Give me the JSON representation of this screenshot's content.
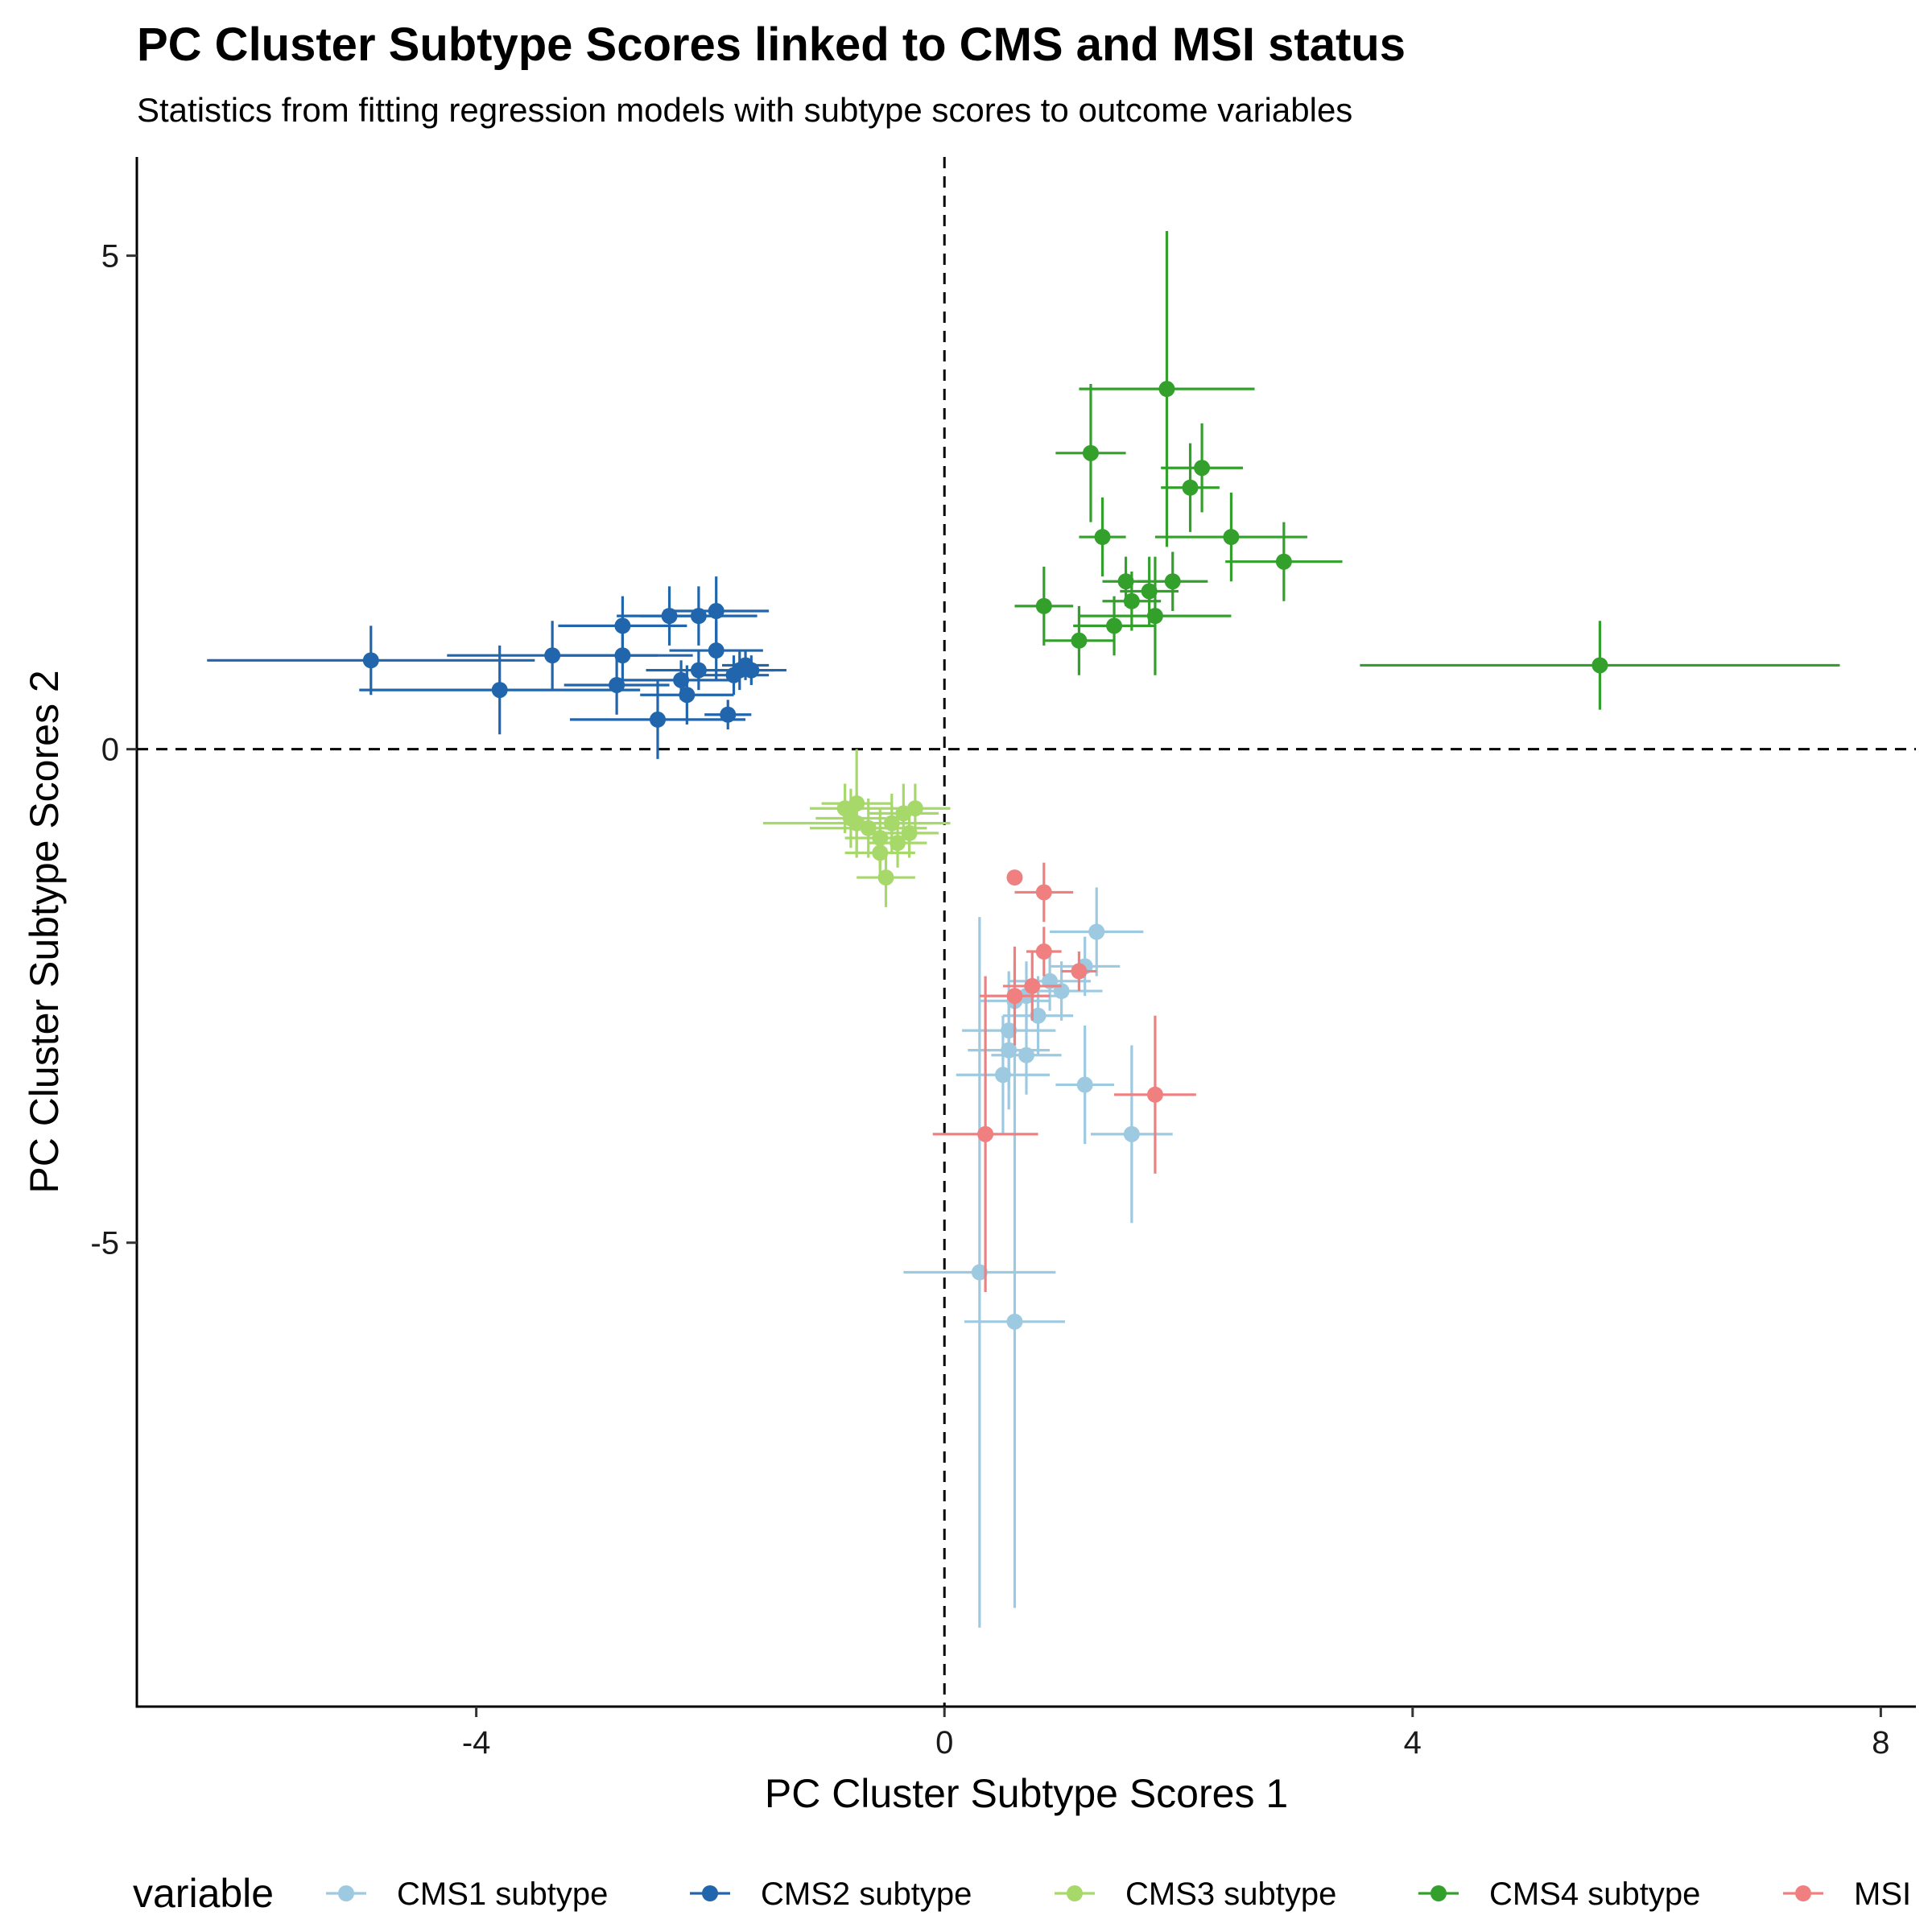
{
  "chart_data": {
    "type": "scatter",
    "title": "PC Cluster Subtype Scores linked to CMS and MSI status",
    "subtitle": "Statistics from fitting regression models with subtype scores to outcome variables",
    "xlabel": "PC Cluster Subtype Scores 1",
    "ylabel": "PC Cluster Subtype Scores 2",
    "xlim": [
      -6.9,
      8.3
    ],
    "ylim": [
      -9.7,
      6.0
    ],
    "xticks": [
      -4,
      0,
      4,
      8
    ],
    "yticks": [
      -5,
      0,
      5
    ],
    "xtick_labels": [
      "-4",
      "0",
      "4",
      "8"
    ],
    "ytick_labels": [
      "-5",
      "0",
      "5"
    ],
    "reference_lines": {
      "x": 0,
      "y": 0,
      "style": "dashed"
    },
    "grid": false,
    "legend": {
      "title": "variable",
      "position": "bottom"
    },
    "series": [
      {
        "name": "CMS1 subtype",
        "color": "#9ecae1",
        "points": [
          {
            "x": 1.3,
            "y": -1.85,
            "xerr": 0.4,
            "yerr": 0.45
          },
          {
            "x": 1.2,
            "y": -2.2,
            "xerr": 0.3,
            "yerr": 0.3
          },
          {
            "x": 0.9,
            "y": -2.35,
            "xerr": 0.35,
            "yerr": 0.3
          },
          {
            "x": 1.0,
            "y": -2.45,
            "xerr": 0.35,
            "yerr": 0.3
          },
          {
            "x": 0.7,
            "y": -2.5,
            "xerr": 0.35,
            "yerr": 0.35
          },
          {
            "x": 0.6,
            "y": -2.55,
            "xerr": 0.3,
            "yerr": 0.4
          },
          {
            "x": 0.8,
            "y": -2.7,
            "xerr": 0.3,
            "yerr": 0.4
          },
          {
            "x": 0.55,
            "y": -2.85,
            "xerr": 0.4,
            "yerr": 0.6
          },
          {
            "x": 0.55,
            "y": -3.05,
            "xerr": 0.35,
            "yerr": 0.6
          },
          {
            "x": 0.7,
            "y": -3.1,
            "xerr": 0.3,
            "yerr": 0.4
          },
          {
            "x": 0.5,
            "y": -3.3,
            "xerr": 0.4,
            "yerr": 0.6
          },
          {
            "x": 1.2,
            "y": -3.4,
            "xerr": 0.25,
            "yerr": 0.6
          },
          {
            "x": 1.6,
            "y": -3.9,
            "xerr": 0.35,
            "yerr": 0.9
          },
          {
            "x": 0.3,
            "y": -5.3,
            "xerr": 0.65,
            "yerr": 3.6
          },
          {
            "x": 0.6,
            "y": -5.8,
            "xerr": 0.43,
            "yerr": 2.9
          }
        ]
      },
      {
        "name": "CMS2 subtype",
        "color": "#2166ac",
        "points": [
          {
            "x": -4.9,
            "y": 0.9,
            "xerr": 1.4,
            "yerr": 0.35
          },
          {
            "x": -3.8,
            "y": 0.6,
            "xerr": 1.2,
            "yerr": 0.45
          },
          {
            "x": -3.35,
            "y": 0.95,
            "xerr": 0.9,
            "yerr": 0.35
          },
          {
            "x": -2.8,
            "y": 0.65,
            "xerr": 0.45,
            "yerr": 0.3
          },
          {
            "x": -2.75,
            "y": 1.25,
            "xerr": 0.55,
            "yerr": 0.3
          },
          {
            "x": -2.75,
            "y": 0.95,
            "xerr": 0.6,
            "yerr": 0.3
          },
          {
            "x": -2.45,
            "y": 0.3,
            "xerr": 0.75,
            "yerr": 0.4
          },
          {
            "x": -2.35,
            "y": 1.35,
            "xerr": 0.45,
            "yerr": 0.3
          },
          {
            "x": -2.25,
            "y": 0.7,
            "xerr": 0.5,
            "yerr": 0.2
          },
          {
            "x": -2.2,
            "y": 0.55,
            "xerr": 0.4,
            "yerr": 0.3
          },
          {
            "x": -2.1,
            "y": 1.35,
            "xerr": 0.5,
            "yerr": 0.3
          },
          {
            "x": -2.1,
            "y": 0.8,
            "xerr": 0.45,
            "yerr": 0.2
          },
          {
            "x": -1.95,
            "y": 1.0,
            "xerr": 0.4,
            "yerr": 0.3
          },
          {
            "x": -1.95,
            "y": 1.4,
            "xerr": 0.45,
            "yerr": 0.35
          },
          {
            "x": -1.85,
            "y": 0.35,
            "xerr": 0.2,
            "yerr": 0.15
          },
          {
            "x": -1.8,
            "y": 0.75,
            "xerr": 0.3,
            "yerr": 0.2
          },
          {
            "x": -1.75,
            "y": 0.8,
            "xerr": 0.3,
            "yerr": 0.2
          },
          {
            "x": -1.7,
            "y": 0.85,
            "xerr": 0.2,
            "yerr": 0.15
          },
          {
            "x": -1.65,
            "y": 0.8,
            "xerr": 0.3,
            "yerr": 0.15
          }
        ]
      },
      {
        "name": "CMS3 subtype",
        "color": "#a6d96a",
        "points": [
          {
            "x": -0.75,
            "y": -0.55,
            "xerr": 0.3,
            "yerr": 0.55
          },
          {
            "x": -0.8,
            "y": -0.7,
            "xerr": 0.3,
            "yerr": 0.3
          },
          {
            "x": -0.65,
            "y": -0.8,
            "xerr": 0.5,
            "yerr": 0.3
          },
          {
            "x": -0.55,
            "y": -0.9,
            "xerr": 0.3,
            "yerr": 0.3
          },
          {
            "x": -0.55,
            "y": -1.05,
            "xerr": 0.3,
            "yerr": 0.25
          },
          {
            "x": -0.45,
            "y": -0.75,
            "xerr": 0.35,
            "yerr": 0.3
          },
          {
            "x": -0.4,
            "y": -0.95,
            "xerr": 0.25,
            "yerr": 0.25
          },
          {
            "x": -0.35,
            "y": -0.65,
            "xerr": 0.3,
            "yerr": 0.3
          },
          {
            "x": -0.25,
            "y": -0.6,
            "xerr": 0.3,
            "yerr": 0.25
          },
          {
            "x": -0.5,
            "y": -1.3,
            "xerr": 0.25,
            "yerr": 0.3
          },
          {
            "x": -0.75,
            "y": -0.75,
            "xerr": 0.8,
            "yerr": 0.3
          },
          {
            "x": -0.3,
            "y": -0.85,
            "xerr": 0.25,
            "yerr": 0.25
          },
          {
            "x": -0.85,
            "y": -0.6,
            "xerr": 0.3,
            "yerr": 0.25
          }
        ]
      },
      {
        "name": "CMS4 subtype",
        "color": "#33a02c",
        "points": [
          {
            "x": 1.9,
            "y": 3.65,
            "xerr": 0.75,
            "yerr": 1.6
          },
          {
            "x": 1.25,
            "y": 3.0,
            "xerr": 0.3,
            "yerr": 0.7
          },
          {
            "x": 2.2,
            "y": 2.85,
            "xerr": 0.35,
            "yerr": 0.45
          },
          {
            "x": 2.1,
            "y": 2.65,
            "xerr": 0.25,
            "yerr": 0.45
          },
          {
            "x": 1.35,
            "y": 2.15,
            "xerr": 0.2,
            "yerr": 0.4
          },
          {
            "x": 2.45,
            "y": 2.15,
            "xerr": 0.65,
            "yerr": 0.45
          },
          {
            "x": 2.9,
            "y": 1.9,
            "xerr": 0.5,
            "yerr": 0.4
          },
          {
            "x": 1.55,
            "y": 1.7,
            "xerr": 0.2,
            "yerr": 0.25
          },
          {
            "x": 1.75,
            "y": 1.6,
            "xerr": 0.25,
            "yerr": 0.35
          },
          {
            "x": 1.95,
            "y": 1.7,
            "xerr": 0.3,
            "yerr": 0.3
          },
          {
            "x": 1.6,
            "y": 1.5,
            "xerr": 0.25,
            "yerr": 0.3
          },
          {
            "x": 0.85,
            "y": 1.45,
            "xerr": 0.25,
            "yerr": 0.4
          },
          {
            "x": 1.8,
            "y": 1.35,
            "xerr": 0.65,
            "yerr": 0.6
          },
          {
            "x": 1.45,
            "y": 1.25,
            "xerr": 0.35,
            "yerr": 0.3
          },
          {
            "x": 1.15,
            "y": 1.1,
            "xerr": 0.3,
            "yerr": 0.35
          },
          {
            "x": 5.6,
            "y": 0.85,
            "xerr": 2.05,
            "yerr": 0.45
          }
        ]
      },
      {
        "name": "MSI",
        "color": "#f08080",
        "points": [
          {
            "x": 0.6,
            "y": -1.3,
            "xerr": 0.06,
            "yerr": 0.06
          },
          {
            "x": 0.85,
            "y": -1.45,
            "xerr": 0.25,
            "yerr": 0.3
          },
          {
            "x": 0.85,
            "y": -2.05,
            "xerr": 0.15,
            "yerr": 0.25
          },
          {
            "x": 1.15,
            "y": -2.25,
            "xerr": 0.15,
            "yerr": 0.2
          },
          {
            "x": 0.75,
            "y": -2.4,
            "xerr": 0.25,
            "yerr": 0.35
          },
          {
            "x": 0.6,
            "y": -2.5,
            "xerr": 0.3,
            "yerr": 0.5
          },
          {
            "x": 1.8,
            "y": -3.5,
            "xerr": 0.35,
            "yerr": 0.8
          },
          {
            "x": 0.35,
            "y": -3.9,
            "xerr": 0.45,
            "yerr": 1.6
          }
        ]
      }
    ]
  }
}
